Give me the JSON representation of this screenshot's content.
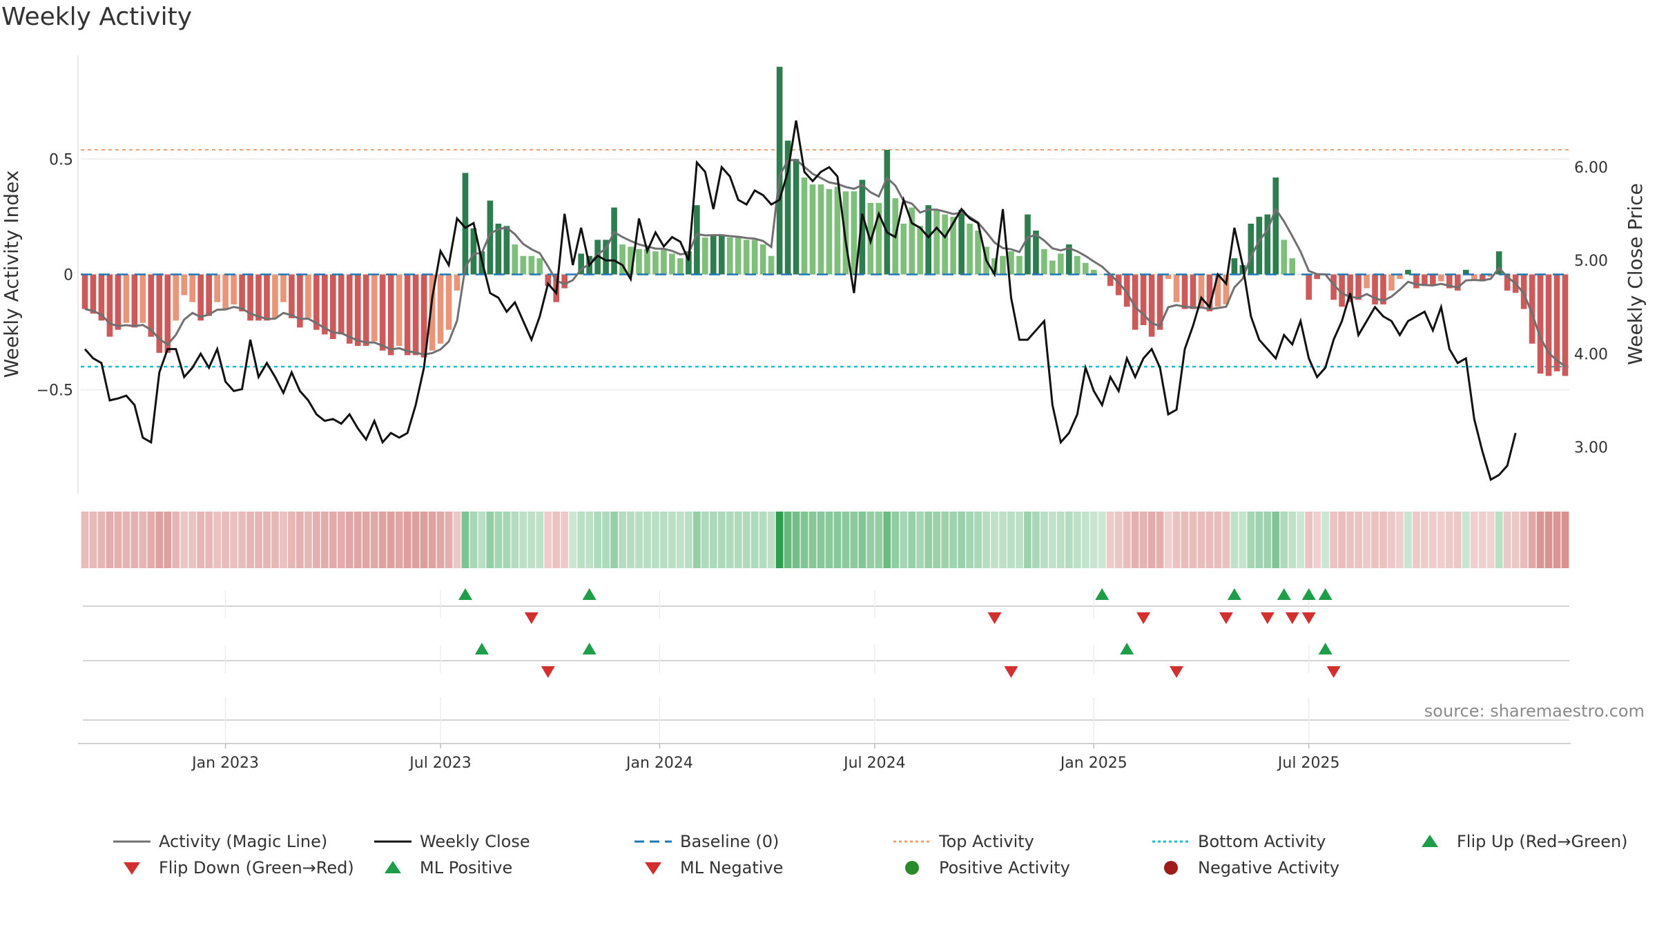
{
  "title": "Weekly Activity",
  "source": "source: sharemaestro.com",
  "colors": {
    "pos_dark": "#2e7d4f",
    "pos_light": "#7fbf7b",
    "neg_dark": "#cc5a5a",
    "neg_light": "#e8957a",
    "magic_line": "#707070",
    "close_line": "#111111",
    "baseline": "#1f77b4",
    "top_line": "#f0a070",
    "bottom_line": "#17becf",
    "flip_up": "#1f9e4a",
    "flip_down": "#d32f2f"
  },
  "legend": [
    {
      "label": "Activity (Magic Line)",
      "symbol": "line-grey"
    },
    {
      "label": "Weekly Close",
      "symbol": "line-black"
    },
    {
      "label": "Baseline (0)",
      "symbol": "dash-blue"
    },
    {
      "label": "Top Activity",
      "symbol": "dot-orange"
    },
    {
      "label": "Bottom Activity",
      "symbol": "dot-cyan"
    },
    {
      "label": "Flip Up (Red→Green)",
      "symbol": "triangle-up-green"
    },
    {
      "label": "Flip Down (Green→Red)",
      "symbol": "triangle-down-red"
    },
    {
      "label": "ML Positive",
      "symbol": "triangle-up-green"
    },
    {
      "label": "ML Negative",
      "symbol": "triangle-down-red"
    },
    {
      "label": "Positive Activity",
      "symbol": "circle-green"
    },
    {
      "label": "Negative Activity",
      "symbol": "circle-red"
    }
  ],
  "chart_data": {
    "type": "bar",
    "title": "Weekly Activity",
    "ylabel_left": "Weekly Activity Index",
    "ylabel_right": "Weekly Close Price",
    "left_ticks": [
      "0.5",
      "0",
      "−0.5"
    ],
    "left_tick_values": [
      0.5,
      0,
      -0.5
    ],
    "right_ticks": [
      "6.00",
      "5.00",
      "4.00",
      "3.00"
    ],
    "right_tick_values": [
      6.0,
      5.0,
      4.0,
      3.0
    ],
    "ylim_left": [
      -0.95,
      0.95
    ],
    "ylim_right": [
      2.5,
      7.2
    ],
    "x_ticks": [
      "Jan 2023",
      "Jul 2023",
      "Jan 2024",
      "Jul 2024",
      "Jan 2025",
      "Jul 2025"
    ],
    "x_tick_weeks": [
      17.5,
      43.5,
      70,
      96,
      122.5,
      148.5
    ],
    "top_activity": 0.54,
    "bottom_activity": -0.4,
    "baseline": 0,
    "grid": true,
    "legend_position": "bottom",
    "series": [
      {
        "name": "Weekly Activity Index",
        "values": [
          -0.15,
          -0.17,
          -0.2,
          -0.27,
          -0.24,
          -0.21,
          -0.23,
          -0.21,
          -0.27,
          -0.34,
          -0.34,
          -0.2,
          -0.09,
          -0.12,
          -0.2,
          -0.18,
          -0.12,
          -0.15,
          -0.13,
          -0.16,
          -0.2,
          -0.2,
          -0.2,
          -0.19,
          -0.12,
          -0.19,
          -0.23,
          -0.19,
          -0.24,
          -0.26,
          -0.28,
          -0.26,
          -0.3,
          -0.31,
          -0.31,
          -0.29,
          -0.33,
          -0.35,
          -0.31,
          -0.35,
          -0.35,
          -0.36,
          -0.33,
          -0.3,
          -0.24,
          -0.07,
          0.44,
          0.2,
          0.1,
          0.32,
          0.22,
          0.21,
          0.13,
          0.08,
          0.08,
          0.07,
          -0.05,
          -0.12,
          -0.06,
          0.0,
          0.09,
          0.08,
          0.15,
          0.15,
          0.29,
          0.13,
          0.12,
          0.11,
          0.11,
          0.1,
          0.11,
          0.09,
          0.07,
          0.1,
          0.3,
          0.16,
          0.17,
          0.17,
          0.16,
          0.16,
          0.15,
          0.15,
          0.13,
          0.08,
          0.9,
          0.58,
          0.5,
          0.42,
          0.39,
          0.39,
          0.37,
          0.38,
          0.36,
          0.36,
          0.41,
          0.31,
          0.31,
          0.54,
          0.33,
          0.22,
          0.29,
          0.21,
          0.3,
          0.28,
          0.26,
          0.25,
          0.28,
          0.22,
          0.19,
          0.12,
          0.07,
          0.08,
          0.1,
          0.08,
          0.26,
          0.19,
          0.11,
          0.06,
          0.09,
          0.13,
          0.08,
          0.05,
          0.02,
          0.0,
          -0.05,
          -0.09,
          -0.14,
          -0.24,
          -0.22,
          -0.27,
          -0.24,
          -0.02,
          -0.12,
          -0.15,
          -0.15,
          -0.14,
          -0.16,
          -0.14,
          -0.13,
          0.07,
          0.04,
          0.22,
          0.25,
          0.26,
          0.42,
          0.15,
          0.07,
          0.0,
          -0.11,
          -0.02,
          0.0,
          -0.11,
          -0.14,
          -0.12,
          -0.11,
          -0.06,
          -0.13,
          -0.13,
          -0.07,
          -0.02,
          0.02,
          -0.06,
          -0.05,
          -0.05,
          -0.03,
          -0.06,
          -0.07,
          0.02,
          -0.02,
          -0.03,
          -0.01,
          0.1,
          -0.07,
          -0.08,
          -0.15,
          -0.3,
          -0.43,
          -0.44,
          -0.42,
          -0.44
        ]
      },
      {
        "name": "Activity (Magic Line)",
        "values": [
          -0.15,
          -0.158,
          -0.175,
          -0.213,
          -0.224,
          -0.22,
          -0.224,
          -0.219,
          -0.24,
          -0.28,
          -0.304,
          -0.262,
          -0.196,
          -0.167,
          -0.184,
          -0.174,
          -0.153,
          -0.152,
          -0.141,
          -0.148,
          -0.17,
          -0.182,
          -0.193,
          -0.192,
          -0.167,
          -0.177,
          -0.193,
          -0.192,
          -0.211,
          -0.232,
          -0.252,
          -0.254,
          -0.271,
          -0.286,
          -0.295,
          -0.295,
          -0.309,
          -0.325,
          -0.32,
          -0.332,
          -0.339,
          -0.347,
          -0.341,
          -0.325,
          -0.291,
          -0.201,
          0.031,
          0.089,
          0.093,
          0.177,
          0.196,
          0.203,
          0.174,
          0.132,
          0.109,
          0.092,
          0.035,
          -0.027,
          -0.042,
          -0.025,
          0.022,
          0.045,
          0.087,
          0.112,
          0.183,
          0.162,
          0.145,
          0.13,
          0.121,
          0.112,
          0.111,
          0.102,
          0.087,
          0.092,
          0.175,
          0.169,
          0.17,
          0.17,
          0.166,
          0.163,
          0.158,
          0.155,
          0.145,
          0.119,
          0.428,
          0.494,
          0.497,
          0.466,
          0.436,
          0.418,
          0.399,
          0.392,
          0.379,
          0.371,
          0.387,
          0.356,
          0.338,
          0.418,
          0.385,
          0.319,
          0.307,
          0.268,
          0.281,
          0.281,
          0.272,
          0.262,
          0.268,
          0.249,
          0.225,
          0.183,
          0.138,
          0.114,
          0.109,
          0.097,
          0.16,
          0.172,
          0.147,
          0.113,
          0.104,
          0.114,
          0.1,
          0.08,
          0.056,
          0.034,
          0.0,
          -0.036,
          -0.078,
          -0.142,
          -0.173,
          -0.212,
          -0.223,
          -0.142,
          -0.133,
          -0.14,
          -0.144,
          -0.143,
          -0.15,
          -0.146,
          -0.14,
          -0.056,
          -0.019,
          0.077,
          0.146,
          0.192,
          0.283,
          0.23,
          0.166,
          0.099,
          0.015,
          0.001,
          0.0,
          -0.044,
          -0.082,
          -0.097,
          -0.102,
          -0.085,
          -0.103,
          -0.114,
          -0.096,
          -0.066,
          -0.032,
          -0.043,
          -0.046,
          -0.048,
          -0.041,
          -0.049,
          -0.057,
          -0.026,
          -0.024,
          -0.026,
          -0.019,
          0.028,
          -0.011,
          -0.039,
          -0.083,
          -0.17,
          -0.274,
          -0.34,
          -0.372,
          -0.399
        ]
      },
      {
        "name": "Weekly Close",
        "values": [
          4.05,
          3.95,
          3.9,
          3.5,
          3.52,
          3.55,
          3.45,
          3.1,
          3.05,
          3.8,
          4.05,
          4.05,
          3.75,
          3.85,
          4.0,
          3.85,
          4.05,
          3.7,
          3.6,
          3.62,
          4.15,
          3.75,
          3.9,
          3.75,
          3.58,
          3.8,
          3.6,
          3.5,
          3.35,
          3.28,
          3.3,
          3.25,
          3.35,
          3.2,
          3.08,
          3.28,
          3.05,
          3.15,
          3.1,
          3.15,
          3.45,
          3.85,
          4.6,
          5.1,
          4.95,
          5.45,
          5.35,
          5.4,
          5.0,
          4.65,
          4.6,
          4.45,
          4.55,
          4.35,
          4.15,
          4.4,
          4.75,
          4.65,
          5.5,
          4.95,
          5.35,
          4.95,
          5.05,
          5.0,
          5.0,
          4.95,
          4.8,
          5.45,
          5.1,
          5.3,
          5.15,
          5.25,
          5.2,
          5.0,
          6.05,
          5.95,
          5.55,
          6.0,
          5.9,
          5.65,
          5.6,
          5.75,
          5.7,
          5.6,
          5.65,
          5.95,
          6.5,
          5.95,
          5.85,
          5.95,
          6.0,
          5.9,
          5.2,
          4.65,
          5.5,
          5.2,
          5.5,
          5.3,
          5.25,
          5.65,
          5.4,
          5.35,
          5.25,
          5.35,
          5.25,
          5.4,
          5.55,
          5.45,
          5.4,
          5.0,
          4.85,
          5.55,
          4.6,
          4.15,
          4.15,
          4.25,
          4.35,
          3.45,
          3.05,
          3.15,
          3.35,
          3.85,
          3.6,
          3.45,
          3.75,
          3.6,
          3.95,
          3.75,
          3.95,
          4.05,
          3.85,
          3.35,
          3.4,
          4.05,
          4.3,
          4.6,
          4.5,
          4.85,
          4.75,
          5.35,
          4.95,
          4.4,
          4.15,
          4.05,
          3.95,
          4.2,
          4.1,
          4.35,
          3.95,
          3.75,
          3.85,
          4.15,
          4.35,
          4.65,
          4.2,
          4.35,
          4.5,
          4.4,
          4.35,
          4.2,
          4.35,
          4.4,
          4.45,
          4.25,
          4.5,
          4.05,
          3.9,
          3.95,
          3.3,
          2.95,
          2.65,
          2.7,
          2.8,
          3.15
        ]
      }
    ],
    "flip_up_weeks": [
      46,
      61,
      123,
      139,
      145,
      148,
      150
    ],
    "flip_down_weeks": [
      54,
      110,
      128,
      138,
      143,
      146,
      148
    ],
    "ml_positive_weeks": [
      48,
      61,
      126,
      150
    ],
    "ml_negative_weeks": [
      56,
      112,
      132,
      151
    ]
  }
}
